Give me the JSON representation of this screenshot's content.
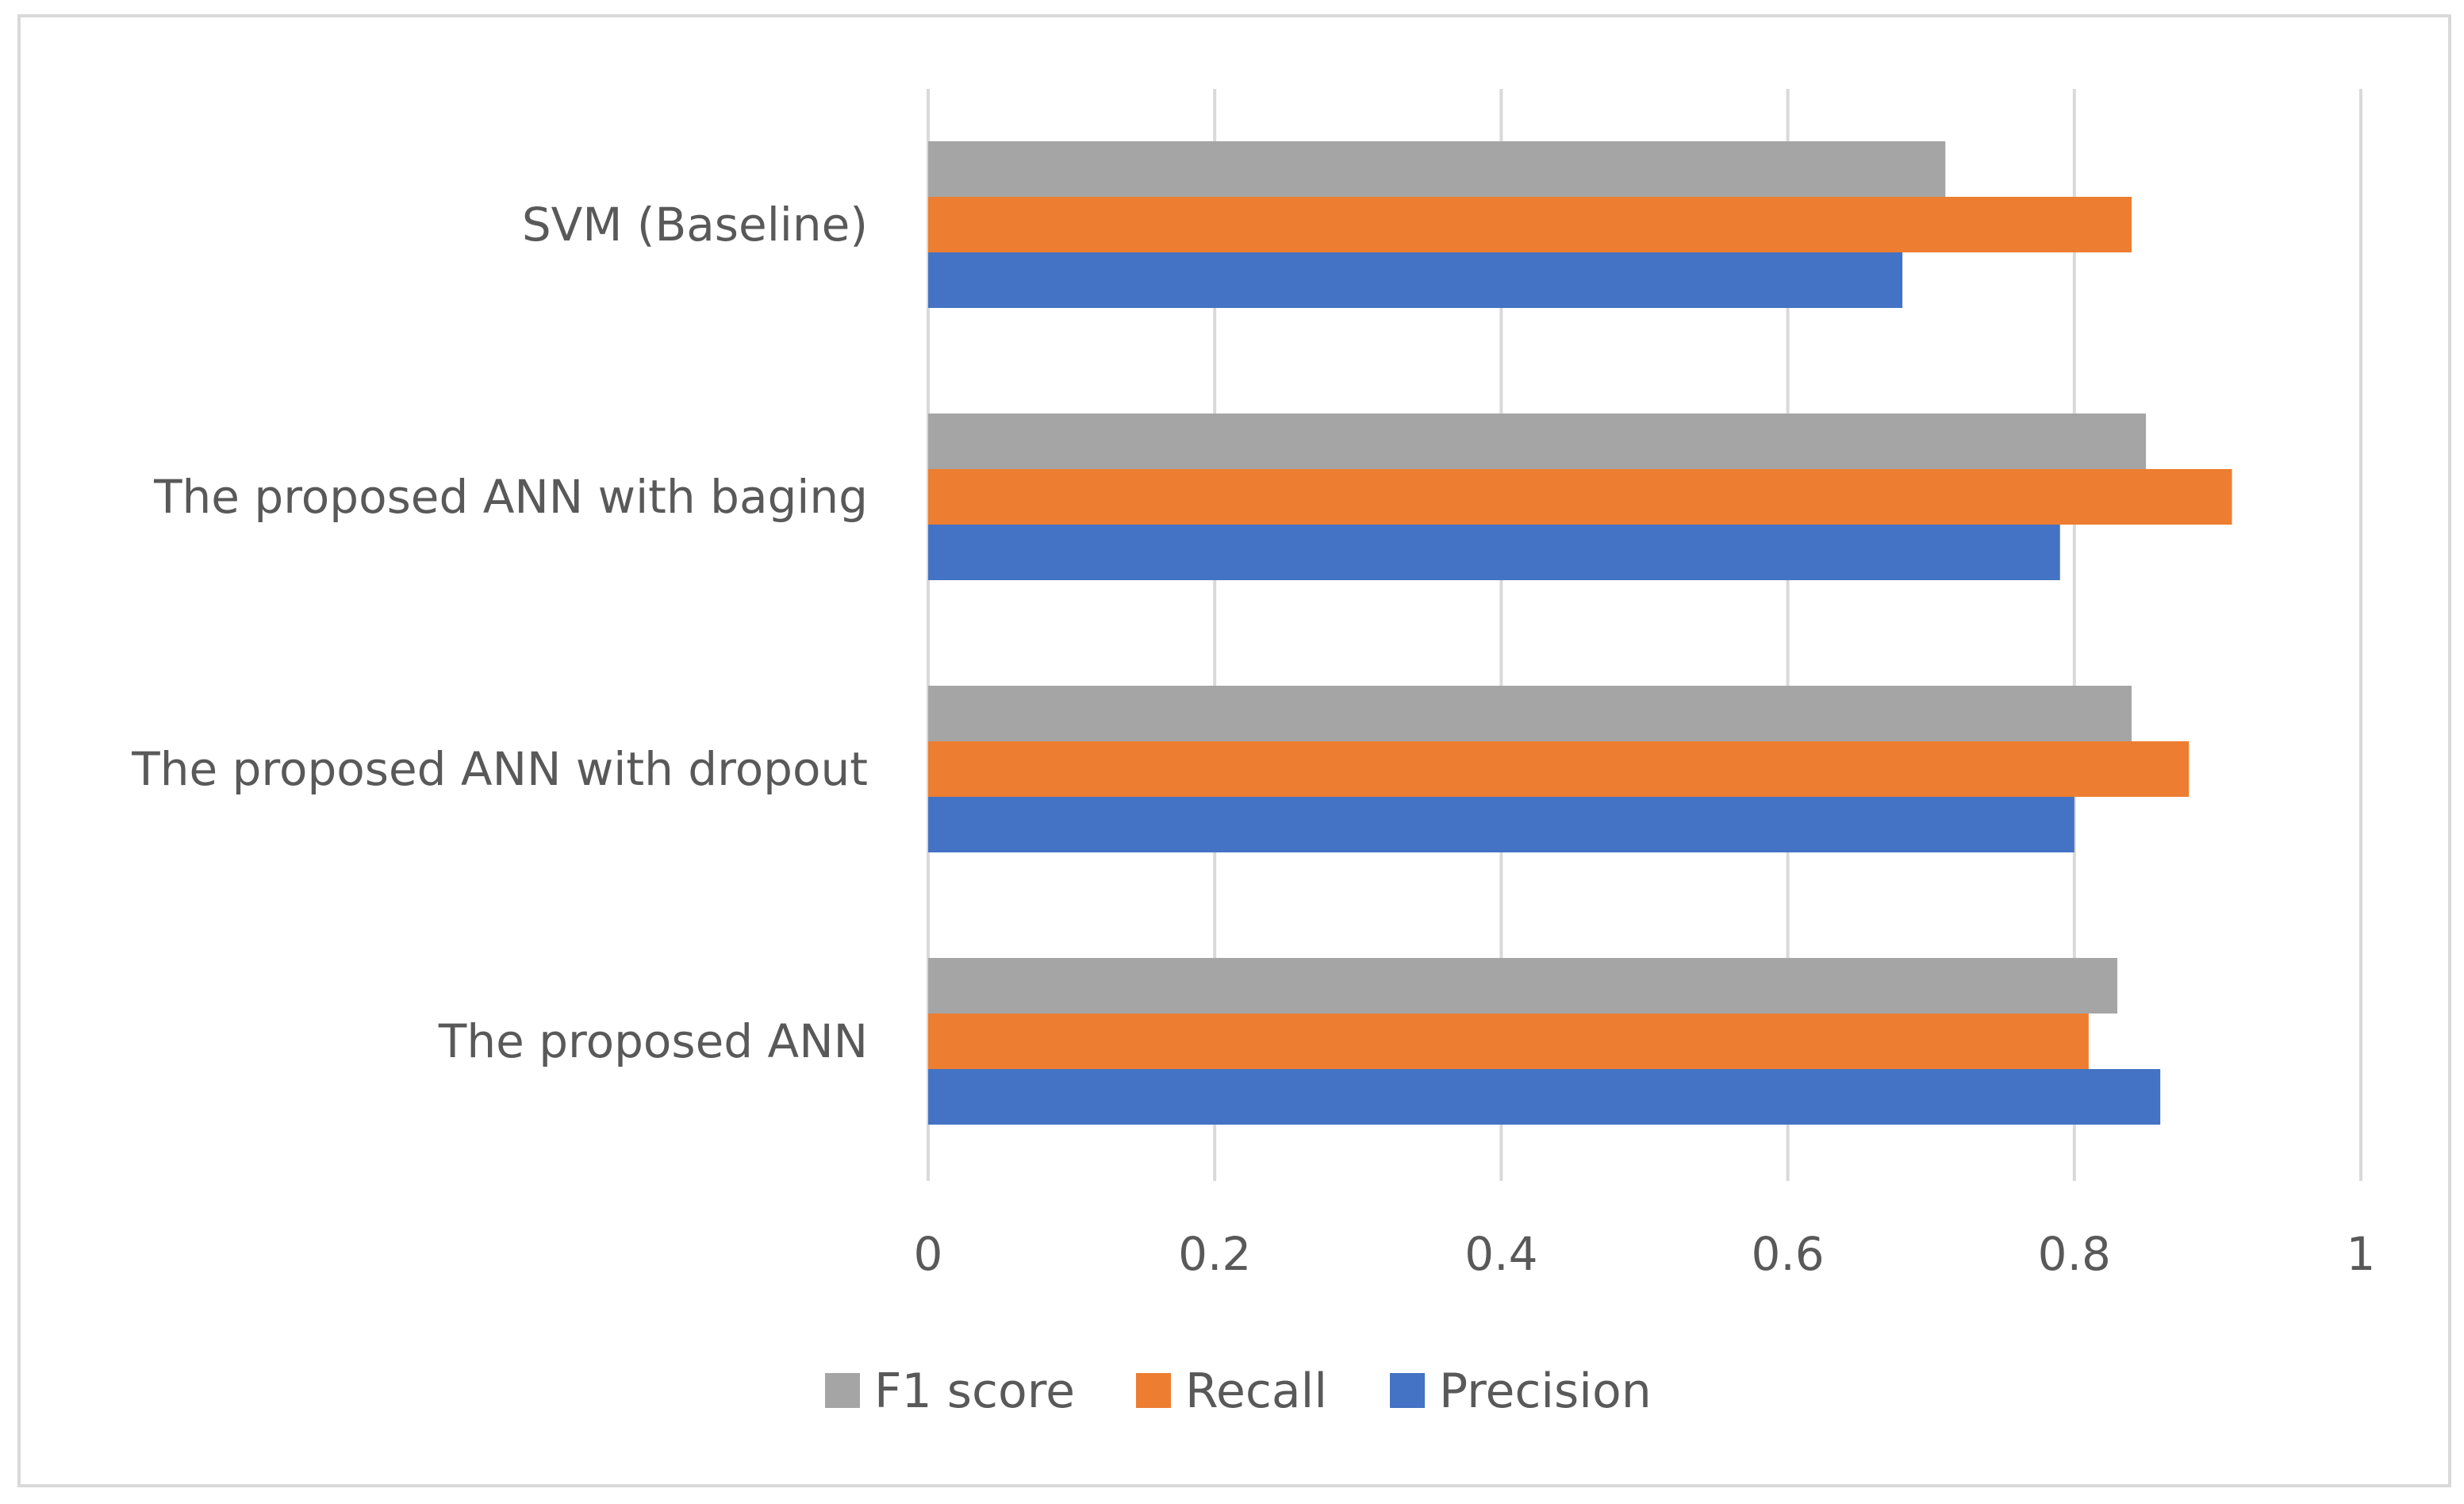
{
  "chart_data": {
    "type": "bar",
    "orientation": "horizontal",
    "title": "",
    "xlabel": "",
    "ylabel": "",
    "categories": [
      "SVM (Baseline)",
      "The proposed ANN with baging",
      "The proposed ANN with dropout",
      "The proposed ANN"
    ],
    "series": [
      {
        "name": "F1 score",
        "color": "#a5a5a5",
        "values": [
          0.71,
          0.85,
          0.84,
          0.83
        ]
      },
      {
        "name": "Recall",
        "color": "#ed7d31",
        "values": [
          0.84,
          0.91,
          0.88,
          0.81
        ]
      },
      {
        "name": "Precision",
        "color": "#4472c4",
        "values": [
          0.68,
          0.79,
          0.8,
          0.86
        ]
      }
    ],
    "xlim": [
      0,
      1
    ],
    "xticks": [
      0,
      0.2,
      0.4,
      0.6,
      0.8,
      1
    ],
    "xtick_labels": [
      "0",
      "0.2",
      "0.4",
      "0.6",
      "0.8",
      "1"
    ],
    "grid": true,
    "legend_position": "bottom"
  }
}
